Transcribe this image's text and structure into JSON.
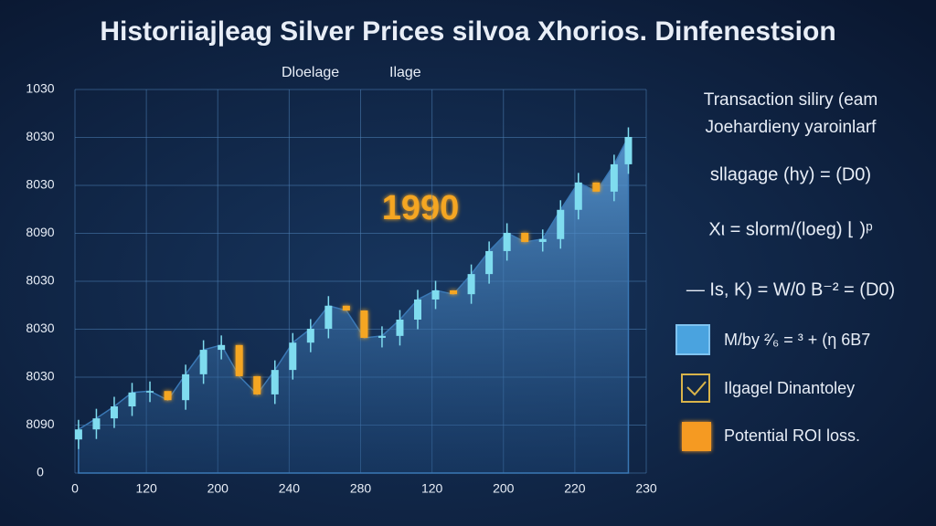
{
  "chart_data": {
    "type": "candlestick",
    "title": "Historiiaj|eag Silver Prices silvoa Xhorios. Dinfenestsion",
    "legend": [
      {
        "label": "Dloelage",
        "color": "#f59a23"
      },
      {
        "label": "Ilage",
        "color": "#f59a23"
      }
    ],
    "annotation": "1990",
    "up_color": "#7fdcef",
    "down_color": "#f5a623",
    "area_color": "#3a78b5",
    "grid": true,
    "xlim": [
      0,
      320
    ],
    "xticks": [
      0,
      {
        "value": 40,
        "label": "120"
      },
      {
        "value": 80,
        "label": "200"
      },
      {
        "value": 120,
        "label": "240"
      },
      {
        "value": 160,
        "label": "280"
      },
      {
        "value": 200,
        "label": "120"
      },
      {
        "value": 240,
        "label": "200"
      },
      {
        "value": 280,
        "label": "220"
      },
      {
        "value": 320,
        "label": "230"
      }
    ],
    "ylim": [
      0,
      800
    ],
    "yticks": [
      0,
      {
        "value": 100,
        "label": "8090"
      },
      {
        "value": 200,
        "label": "8030"
      },
      {
        "value": 300,
        "label": "8030"
      },
      {
        "value": 400,
        "label": "8030"
      },
      {
        "value": 500,
        "label": "8090"
      },
      {
        "value": 600,
        "label": "8030"
      },
      {
        "value": 700,
        "label": "8030"
      },
      {
        "value": 800,
        "label": "1030"
      }
    ],
    "x": [
      2,
      12,
      22,
      32,
      42,
      52,
      62,
      72,
      82,
      92,
      102,
      112,
      122,
      132,
      142,
      152,
      162,
      172,
      182,
      192,
      202,
      212,
      222,
      232,
      242,
      252,
      262,
      272,
      282,
      292,
      302,
      310
    ],
    "open": [
      70,
      91,
      114,
      139,
      168,
      171,
      152,
      206,
      257,
      267,
      202,
      164,
      215,
      272,
      301,
      349,
      339,
      282,
      286,
      320,
      362,
      381,
      373,
      415,
      463,
      501,
      482,
      488,
      549,
      606,
      587,
      644
    ],
    "high": [
      111,
      134,
      159,
      188,
      191,
      191,
      226,
      277,
      287,
      287,
      222,
      235,
      292,
      321,
      369,
      369,
      359,
      306,
      340,
      382,
      401,
      401,
      435,
      483,
      521,
      521,
      508,
      569,
      626,
      626,
      664,
      721
    ],
    "low": [
      50,
      71,
      94,
      119,
      148,
      132,
      132,
      186,
      237,
      182,
      144,
      144,
      195,
      252,
      281,
      319,
      262,
      262,
      266,
      300,
      342,
      353,
      353,
      395,
      443,
      462,
      462,
      468,
      529,
      567,
      567,
      624
    ],
    "close": [
      91,
      114,
      139,
      168,
      171,
      152,
      206,
      257,
      267,
      202,
      164,
      215,
      272,
      301,
      349,
      339,
      282,
      286,
      320,
      362,
      381,
      373,
      415,
      463,
      501,
      482,
      488,
      549,
      606,
      587,
      644,
      701
    ]
  },
  "side_panel": {
    "heading": "Transaction siliry (eam",
    "subheading": "Joehardieny yaroinlarf",
    "formulas": [
      "sllagage (hy) = (D0)",
      "Xι = slorm/(loeg) ⌊ )ᵖ",
      "— Is, K) = W/0 B⁻² = (D0)"
    ],
    "items": [
      {
        "label": "M/by ²⁄₆ = ³ + (η 6B7",
        "color": "#4aa3df"
      },
      {
        "label": "Ilgagel Dinantoley",
        "color": "#d9b44a"
      },
      {
        "label": "Potential ROI loss.",
        "color": "#f59a23"
      }
    ]
  }
}
